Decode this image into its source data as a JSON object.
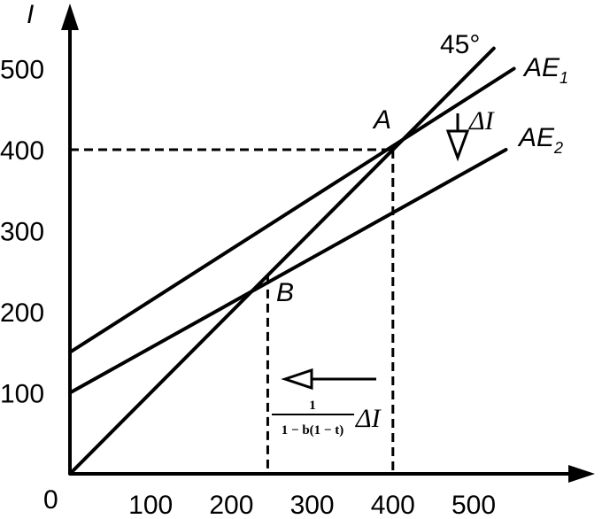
{
  "chart_data": {
    "type": "line",
    "ylabel": "I",
    "origin_label": "0",
    "x_ticks": [
      100,
      200,
      300,
      400,
      500
    ],
    "y_ticks": [
      100,
      200,
      300,
      400,
      500
    ],
    "xlim": [
      0,
      650
    ],
    "ylim": [
      0,
      560
    ],
    "series": [
      {
        "name": "45°",
        "x": [
          0,
          525
        ],
        "y": [
          0,
          525
        ]
      },
      {
        "name": "AE",
        "sub": "1",
        "x": [
          0,
          550
        ],
        "y": [
          150,
          500
        ]
      },
      {
        "name": "AE",
        "sub": "2",
        "x": [
          0,
          540
        ],
        "y": [
          100,
          400
        ]
      }
    ],
    "points": [
      {
        "label": "A",
        "x": 400,
        "y": 400
      },
      {
        "label": "B",
        "x": 245,
        "y": 245
      }
    ],
    "annotations": {
      "shift_label": "ΔI",
      "multiplier_numerator": "1",
      "multiplier_denominator": "1 − b(1 − t)",
      "multiplier_suffix": "ΔI"
    }
  }
}
